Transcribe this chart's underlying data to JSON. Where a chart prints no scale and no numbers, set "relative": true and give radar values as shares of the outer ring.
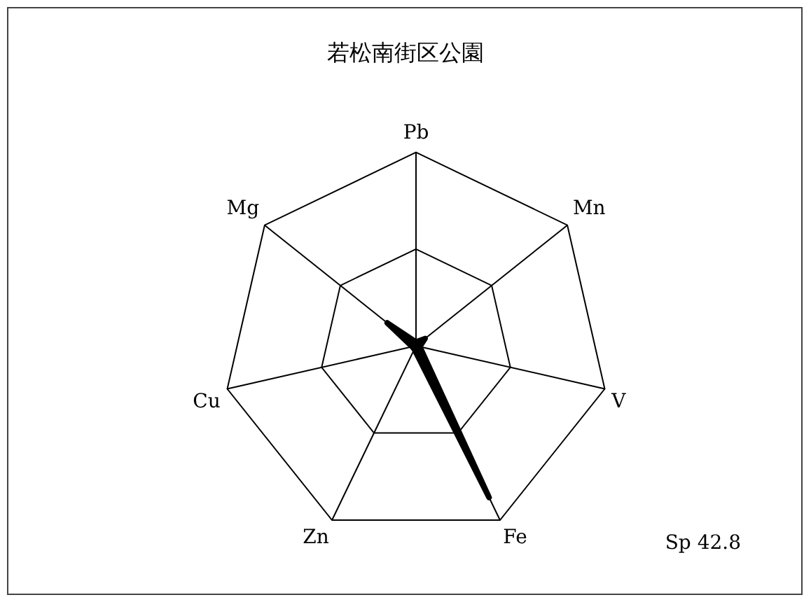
{
  "chart_data": {
    "type": "radar",
    "title": "若松南街区公園",
    "categories": [
      "Pb",
      "Mn",
      "V",
      "Fe",
      "Zn",
      "Cu",
      "Mg"
    ],
    "relative": true,
    "grid": true,
    "legend": false,
    "marker": "none",
    "line_style": "solid",
    "series": [
      {
        "color": "#000000",
        "values": [
          0.02,
          0.06,
          0.02,
          0.87,
          0.02,
          0.02,
          0.19
        ]
      }
    ],
    "annotations": [
      "Sp 42.8"
    ]
  }
}
